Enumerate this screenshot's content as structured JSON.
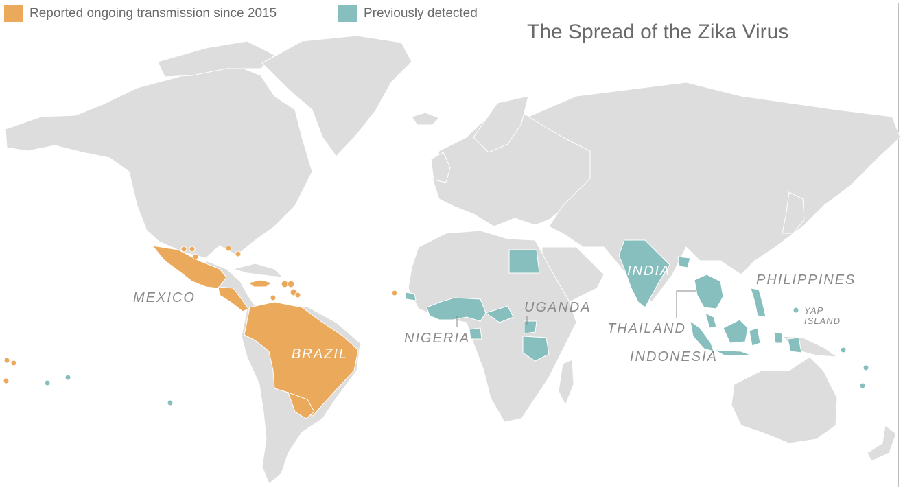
{
  "title": "The Spread of the Zika Virus",
  "legend": [
    {
      "label": "Reported ongoing transmission since 2015",
      "color": "#eba95c"
    },
    {
      "label": "Previously detected",
      "color": "#86bfbd"
    }
  ],
  "colors": {
    "land": "#dddddd",
    "border": "#ffffff",
    "ongoing": "#eba95c",
    "previous": "#86bfbd"
  },
  "labels": {
    "mexico": "MEXICO",
    "brazil": "BRAZIL",
    "nigeria": "NIGERIA",
    "uganda": "UGANDA",
    "india": "INDIA",
    "thailand": "THAILAND",
    "indonesia": "INDONESIA",
    "philippines": "PHILIPPINES",
    "yap_line1": "YAP",
    "yap_line2": "ISLAND"
  },
  "regions": {
    "ongoing": [
      "MEXICO",
      "BRAZIL"
    ],
    "previous": [
      "NIGERIA",
      "UGANDA",
      "INDIA",
      "THAILAND",
      "INDONESIA",
      "PHILIPPINES",
      "YAP ISLAND"
    ]
  }
}
